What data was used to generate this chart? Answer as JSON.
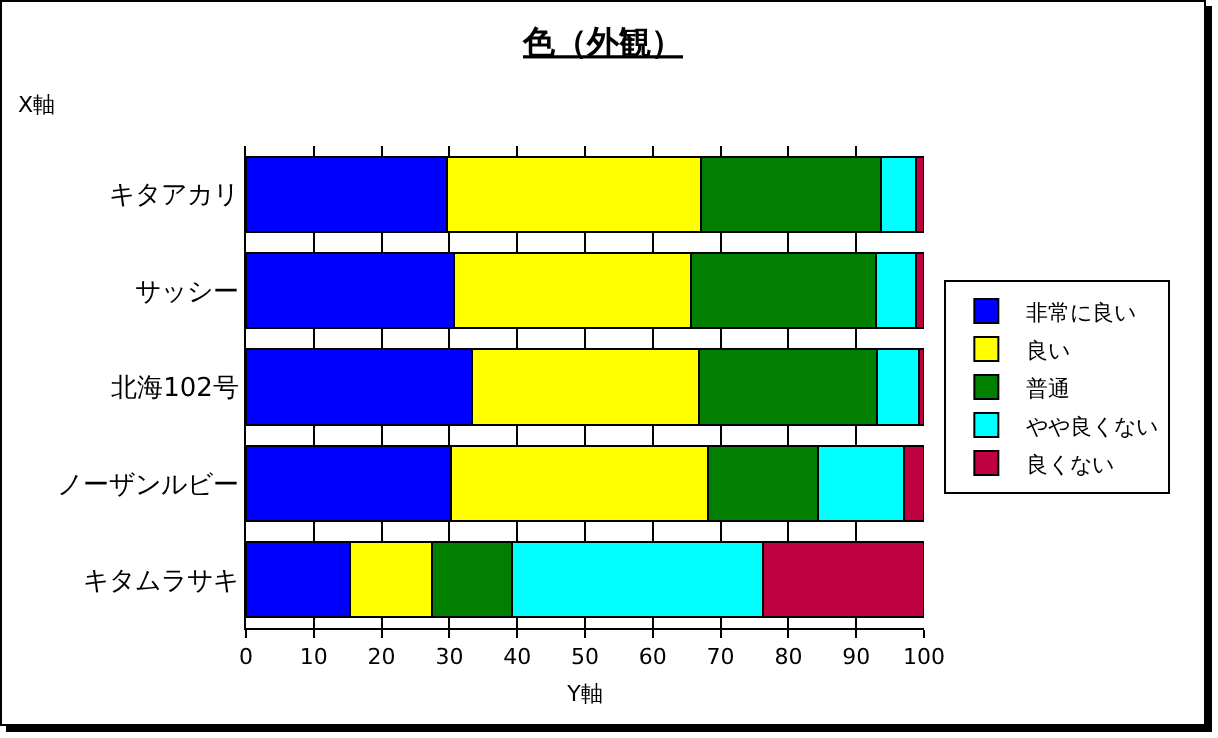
{
  "chart_data": {
    "type": "bar",
    "orientation": "horizontal",
    "stacked": true,
    "title": "色（外観）",
    "xlabel": "Y軸",
    "ylabel": "X軸",
    "categories": [
      "キタアカリ",
      "サッシー",
      "北海102号",
      "ノーザンルビー",
      "キタムラサキ"
    ],
    "series": [
      {
        "name": "非常に良い",
        "color": "#0000ff",
        "values": [
          29.6,
          30.7,
          33.3,
          30.2,
          15.4
        ]
      },
      {
        "name": "良い",
        "color": "#ffff00",
        "values": [
          37.5,
          34.9,
          33.5,
          38.0,
          12.1
        ]
      },
      {
        "name": "普通",
        "color": "#007f00",
        "values": [
          26.6,
          27.3,
          26.2,
          16.2,
          11.7
        ]
      },
      {
        "name": "やや良くない",
        "color": "#00ffff",
        "values": [
          5.1,
          5.9,
          6.2,
          12.6,
          37.0
        ]
      },
      {
        "name": "良くない",
        "color": "#bf0041",
        "values": [
          1.2,
          1.2,
          0.8,
          3.0,
          23.8
        ]
      }
    ],
    "xlim": [
      0,
      100
    ],
    "xticks": [
      0,
      10,
      20,
      30,
      40,
      50,
      60,
      70,
      80,
      90,
      100
    ],
    "grid": "x",
    "legend": "right"
  }
}
